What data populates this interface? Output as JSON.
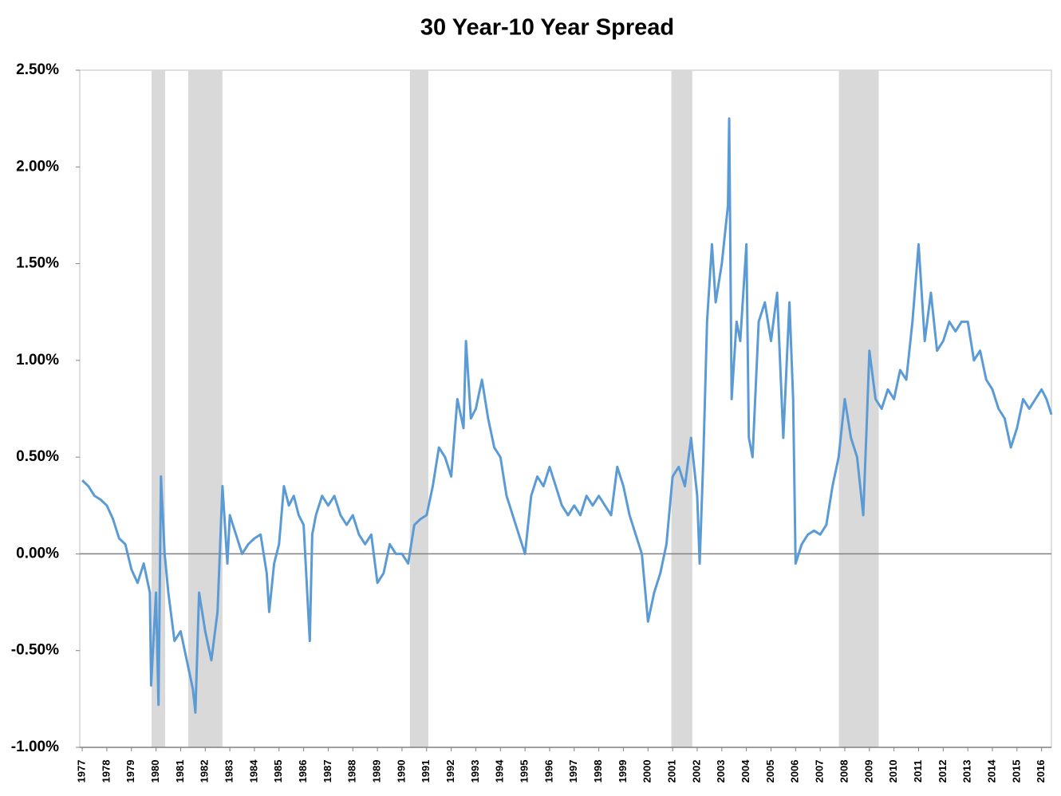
{
  "chart_data": {
    "type": "line",
    "title": "30 Year-10 Year Spread",
    "color": "#5b9bd5",
    "recession_color": "#d9d9d9",
    "recessions": [
      [
        1979.82,
        1980.37
      ],
      [
        1981.31,
        1982.7
      ],
      [
        1990.32,
        1991.07
      ],
      [
        2000.95,
        2001.8
      ],
      [
        2007.76,
        2009.38
      ]
    ],
    "xlim": [
      1976.9,
      2016.4
    ],
    "xticks": [
      1977,
      1978,
      1979,
      1980,
      1981,
      1982,
      1983,
      1984,
      1985,
      1986,
      1987,
      1988,
      1989,
      1990,
      1991,
      1992,
      1993,
      1994,
      1995,
      1996,
      1997,
      1998,
      1999,
      2000,
      2001,
      2002,
      2003,
      2004,
      2005,
      2006,
      2007,
      2008,
      2009,
      2010,
      2011,
      2012,
      2013,
      2014,
      2015,
      2016
    ],
    "ylim": [
      -1,
      2.5
    ],
    "yticks": [
      {
        "value": -1,
        "label": "-1.00%"
      },
      {
        "value": -0.5,
        "label": "-0.50%"
      },
      {
        "value": 0,
        "label": "0.00%"
      },
      {
        "value": 0.5,
        "label": "0.50%"
      },
      {
        "value": 1,
        "label": "1.00%"
      },
      {
        "value": 1.5,
        "label": "1.50%"
      },
      {
        "value": 2,
        "label": "2.00%"
      },
      {
        "value": 2.5,
        "label": "2.50%"
      }
    ],
    "x": [
      1977,
      1977.25,
      1977.5,
      1977.75,
      1978,
      1978.25,
      1978.5,
      1978.75,
      1979,
      1979.25,
      1979.5,
      1979.75,
      1979.8,
      1980,
      1980.1,
      1980.2,
      1980.35,
      1980.5,
      1980.75,
      1981,
      1981.25,
      1981.5,
      1981.6,
      1981.75,
      1982,
      1982.25,
      1982.5,
      1982.7,
      1982.9,
      1983,
      1983.25,
      1983.5,
      1983.75,
      1984,
      1984.25,
      1984.5,
      1984.6,
      1984.8,
      1985,
      1985.2,
      1985.4,
      1985.6,
      1985.8,
      1986,
      1986.25,
      1986.35,
      1986.5,
      1986.75,
      1987,
      1987.25,
      1987.5,
      1987.75,
      1988,
      1988.25,
      1988.5,
      1988.75,
      1989,
      1989.25,
      1989.5,
      1989.75,
      1990,
      1990.25,
      1990.5,
      1990.75,
      1991,
      1991.25,
      1991.5,
      1991.75,
      1992,
      1992.25,
      1992.5,
      1992.6,
      1992.8,
      1993,
      1993.25,
      1993.5,
      1993.75,
      1994,
      1994.25,
      1994.5,
      1994.75,
      1995,
      1995.25,
      1995.5,
      1995.75,
      1996,
      1996.25,
      1996.5,
      1996.75,
      1997,
      1997.25,
      1997.5,
      1997.75,
      1998,
      1998.25,
      1998.5,
      1998.75,
      1999,
      1999.25,
      1999.5,
      1999.75,
      2000,
      2000.25,
      2000.5,
      2000.75,
      2001,
      2001.25,
      2001.5,
      2001.75,
      2002,
      2002.1,
      2002.25,
      2002.4,
      2002.6,
      2002.75,
      2003,
      2003.25,
      2003.3,
      2003.4,
      2003.6,
      2003.75,
      2004,
      2004.1,
      2004.25,
      2004.5,
      2004.75,
      2005,
      2005.25,
      2005.5,
      2005.75,
      2005.9,
      2006,
      2006.25,
      2006.5,
      2006.75,
      2007,
      2007.25,
      2007.5,
      2007.75,
      2008,
      2008.25,
      2008.5,
      2008.75,
      2008.9,
      2009,
      2009.25,
      2009.5,
      2009.75,
      2010,
      2010.25,
      2010.5,
      2010.75,
      2011,
      2011.25,
      2011.5,
      2011.75,
      2012,
      2012.25,
      2012.5,
      2012.75,
      2013,
      2013.25,
      2013.5,
      2013.75,
      2014,
      2014.25,
      2014.5,
      2014.75,
      2015,
      2015.25,
      2015.5,
      2015.75,
      2016,
      2016.2,
      2016.4
    ],
    "values": [
      0.38,
      0.35,
      0.3,
      0.28,
      0.25,
      0.18,
      0.08,
      0.05,
      -0.08,
      -0.15,
      -0.05,
      -0.2,
      -0.68,
      -0.2,
      -0.78,
      0.4,
      0.0,
      -0.2,
      -0.45,
      -0.4,
      -0.55,
      -0.7,
      -0.82,
      -0.2,
      -0.4,
      -0.55,
      -0.3,
      0.35,
      -0.05,
      0.2,
      0.1,
      0.0,
      0.05,
      0.08,
      0.1,
      -0.1,
      -0.3,
      -0.05,
      0.05,
      0.35,
      0.25,
      0.3,
      0.2,
      0.15,
      -0.45,
      0.1,
      0.2,
      0.3,
      0.25,
      0.3,
      0.2,
      0.15,
      0.2,
      0.1,
      0.05,
      0.1,
      -0.15,
      -0.1,
      0.05,
      0.0,
      0.0,
      -0.05,
      0.15,
      0.18,
      0.2,
      0.35,
      0.55,
      0.5,
      0.4,
      0.8,
      0.65,
      1.1,
      0.7,
      0.75,
      0.9,
      0.7,
      0.55,
      0.5,
      0.3,
      0.2,
      0.1,
      0.0,
      0.3,
      0.4,
      0.35,
      0.45,
      0.35,
      0.25,
      0.2,
      0.25,
      0.2,
      0.3,
      0.25,
      0.3,
      0.25,
      0.2,
      0.45,
      0.35,
      0.2,
      0.1,
      0.0,
      -0.35,
      -0.2,
      -0.1,
      0.05,
      0.4,
      0.45,
      0.35,
      0.6,
      0.3,
      -0.05,
      0.5,
      1.2,
      1.6,
      1.3,
      1.5,
      1.8,
      2.25,
      0.8,
      1.2,
      1.1,
      1.6,
      0.6,
      0.5,
      1.2,
      1.3,
      1.1,
      1.35,
      0.6,
      1.3,
      0.8,
      -0.05,
      0.05,
      0.1,
      0.12,
      0.1,
      0.15,
      0.35,
      0.5,
      0.8,
      0.6,
      0.5,
      0.2,
      0.7,
      1.05,
      0.8,
      0.75,
      0.85,
      0.8,
      0.95,
      0.9,
      1.2,
      1.6,
      1.1,
      1.35,
      1.05,
      1.1,
      1.2,
      1.15,
      1.2,
      1.2,
      1.0,
      1.05,
      0.9,
      0.85,
      0.75,
      0.7,
      0.55,
      0.65,
      0.8,
      0.75,
      0.8,
      0.85,
      0.8,
      0.72
    ]
  }
}
